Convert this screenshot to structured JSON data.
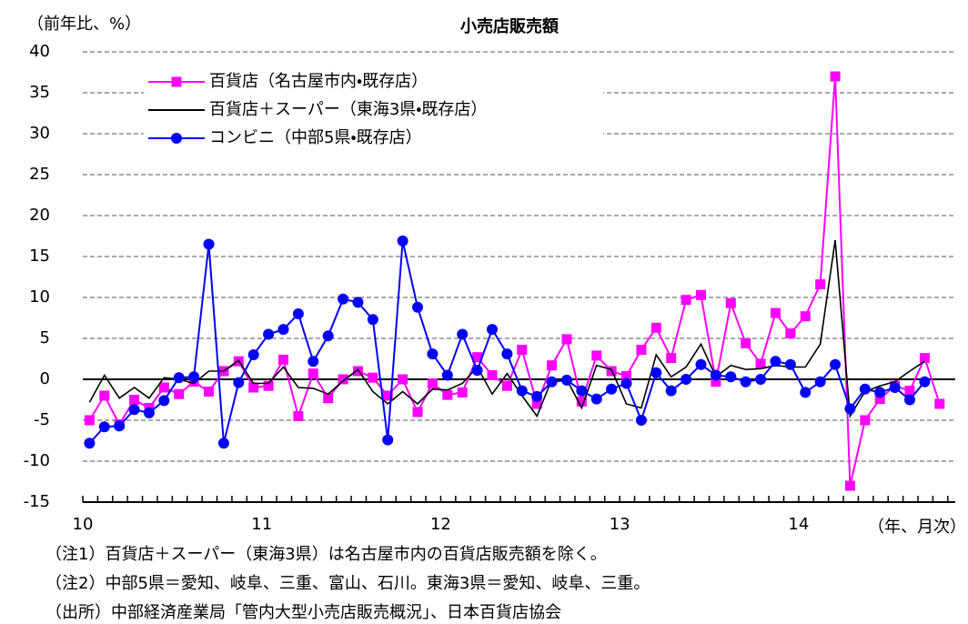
{
  "chart_data": {
    "type": "line",
    "title": "小売店販売額",
    "y_label": "（前年比、%）",
    "x_label": "（年、月次）",
    "notes": [
      "（注1）百貨店＋スーパー（東海3県）は名古屋市内の百貨店販売額を除く。",
      "（注2）中部5県＝愛知、岐阜、三重、富山、石川。東海3県＝愛知、岐阜、三重。",
      "（出所）中部経済産業局「管内大型小売店販売概況」、日本百貨店協会"
    ],
    "categories": [
      "10",
      null,
      null,
      null,
      null,
      null,
      null,
      null,
      null,
      null,
      null,
      null,
      "11",
      null,
      null,
      null,
      null,
      null,
      null,
      null,
      null,
      null,
      null,
      null,
      "12",
      null,
      null,
      null,
      null,
      null,
      null,
      null,
      null,
      null,
      null,
      null,
      "13",
      null,
      null,
      null,
      null,
      null,
      null,
      null,
      null,
      null,
      null,
      null,
      "14",
      null,
      null,
      null,
      null,
      null,
      null,
      null,
      null,
      null
    ],
    "ylim": [
      -15,
      40
    ],
    "yticks": [
      -15,
      -10,
      -5,
      0,
      5,
      10,
      15,
      20,
      25,
      30,
      35,
      40
    ],
    "grid": true,
    "legend": "upper left",
    "series": [
      {
        "name": "百貨店（名古屋市内・既存店）",
        "color": "#ff00ff",
        "marker": "square",
        "values": [
          -5,
          -2,
          -5.5,
          -2.5,
          -3.5,
          -1,
          -1.8,
          -0.3,
          -1.5,
          1,
          2.2,
          -1,
          -0.8,
          2.4,
          -4.5,
          0.7,
          -2.3,
          0,
          1,
          0.2,
          -2,
          0,
          -4,
          -0.5,
          -1.9,
          -1.6,
          2.7,
          0.5,
          -0.8,
          3.6,
          -3,
          1.7,
          4.9,
          -2.7,
          2.9,
          1,
          0.4,
          3.6,
          6.3,
          2.6,
          9.7,
          10.3,
          -0.3,
          9.3,
          4.4,
          1.9,
          8.1,
          5.6,
          7.7,
          11.6,
          37,
          -13,
          -5,
          -2.4,
          -0.8,
          -1.4,
          2.6,
          -3
        ]
      },
      {
        "name": "百貨店＋スーパー（東海3県・既存店）",
        "color": "#000000",
        "marker": "none",
        "values": [
          -2.8,
          0.5,
          -2.3,
          -1,
          -2.3,
          0.2,
          0,
          -0.5,
          1,
          1,
          2.3,
          -0.5,
          -0.5,
          1.5,
          -1,
          -1.1,
          -1.8,
          -0.2,
          1.2,
          -1.5,
          -3,
          -1.5,
          -3,
          -1.2,
          -1.3,
          -0.5,
          1.5,
          -1.8,
          0.7,
          -2,
          -4.5,
          0,
          0,
          -3.5,
          1.7,
          1.2,
          -3,
          -3.5,
          3,
          0.3,
          1.5,
          4.3,
          0.3,
          1.7,
          1.2,
          1.3,
          1.7,
          1.5,
          1.5,
          4.3,
          17,
          -4.5,
          -1.5,
          -0.8,
          -0.3,
          1,
          2.2,
          null
        ]
      },
      {
        "name": "コンビニ（中部5県・既存店）",
        "color": "#0000ff",
        "marker": "circle",
        "values": [
          -7.8,
          -5.8,
          -5.7,
          -3.7,
          -4.1,
          -2.6,
          0.2,
          0.3,
          16.5,
          -7.8,
          -0.4,
          3,
          5.5,
          6.1,
          8,
          2.2,
          5.3,
          9.8,
          9.4,
          7.3,
          -7.4,
          16.9,
          8.8,
          3.1,
          0.5,
          5.5,
          1.1,
          6.1,
          3.1,
          -1.4,
          -2.1,
          -0.3,
          -0.1,
          -1.4,
          -2.4,
          -1.2,
          -0.5,
          -5,
          0.8,
          -1.4,
          0,
          1.8,
          0.5,
          0.3,
          -0.3,
          0,
          2.2,
          1.8,
          -1.6,
          -0.3,
          1.8,
          -3.6,
          -1.2,
          -1.6,
          -1,
          -2.5,
          -0.3,
          null
        ]
      }
    ]
  }
}
